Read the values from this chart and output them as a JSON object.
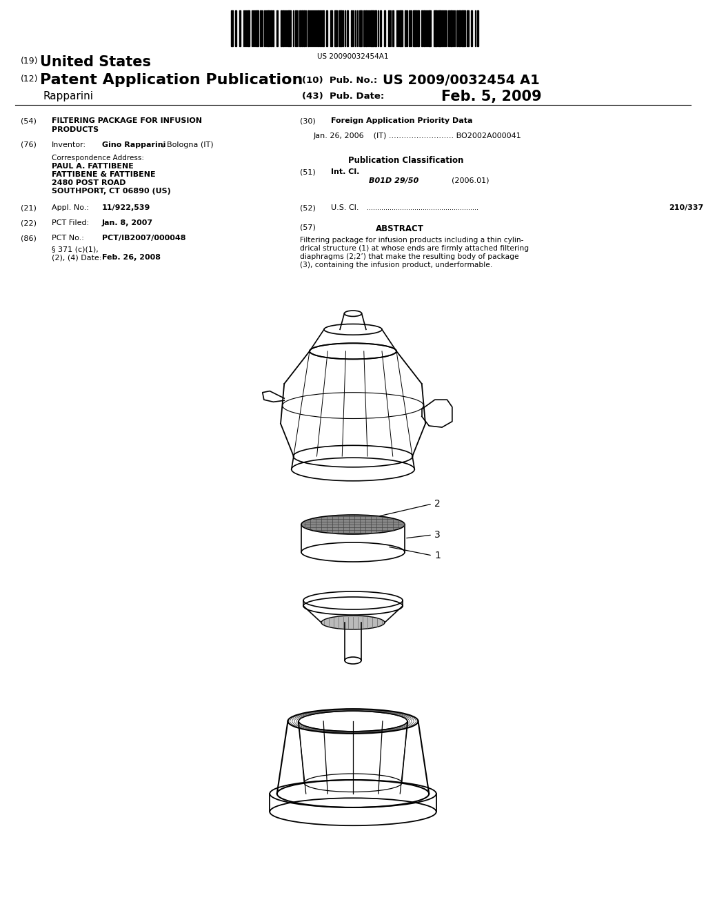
{
  "bg_color": "#ffffff",
  "barcode_text": "US 20090032454A1",
  "line19_small": "(19)",
  "line19_big": "United States",
  "line12_small": "(12)",
  "line12_big": "Patent Application Publication",
  "pub_no_label": "(10)  Pub. No.:",
  "pub_no_val": "US 2009/0032454 A1",
  "inventor_name": "Rapparini",
  "pub_date_label": "(43)  Pub. Date:",
  "pub_date_val": "Feb. 5, 2009",
  "field54_label": "(54)",
  "field54_title1": "FILTERING PACKAGE FOR INFUSION",
  "field54_title2": "PRODUCTS",
  "field76_label": "(76)",
  "field76_key": "Inventor:",
  "field76_val_bold": "Gino Rapparini",
  "field76_val_rest": ", Bologna (IT)",
  "corr_addr": "Correspondence Address:",
  "addr1": "PAUL A. FATTIBENE",
  "addr2": "FATTIBENE & FATTIBENE",
  "addr3": "2480 POST ROAD",
  "addr4": "SOUTHPORT, CT 06890 (US)",
  "field21_label": "(21)",
  "field21_key": "Appl. No.:",
  "field21_val": "11/922,539",
  "field22_label": "(22)",
  "field22_key": "PCT Filed:",
  "field22_val": "Jan. 8, 2007",
  "field86_label": "(86)",
  "field86_key": "PCT No.:",
  "field86_val": "PCT/IB2007/000048",
  "field86b": "§ 371 (c)(1),",
  "field86c": "(2), (4) Date:",
  "field86d": "Feb. 26, 2008",
  "field30_label": "(30)",
  "field30_title": "Foreign Application Priority Data",
  "field30_line": "Jan. 26, 2006    (IT) .......................... BO2002A000041",
  "pub_class_title": "Publication Classification",
  "field51_label": "(51)",
  "field51_key": "Int. Cl.",
  "field51_class": "B01D 29/50",
  "field51_year": "(2006.01)",
  "field52_label": "(52)",
  "field52_key": "U.S. Cl.",
  "field52_dots": "......................................................",
  "field52_val": "210/337",
  "field57_label": "(57)",
  "field57_title": "ABSTRACT",
  "abstract_line1": "Filtering package for infusion products including a thin cylin-",
  "abstract_line2": "drical structure (1) at whose ends are firmly attached filtering",
  "abstract_line3": "diaphragms (2;2’) that make the resulting body of package",
  "abstract_line4": "(3), containing the infusion product, underformable.",
  "label1": "2",
  "label2": "3",
  "label3": "1"
}
